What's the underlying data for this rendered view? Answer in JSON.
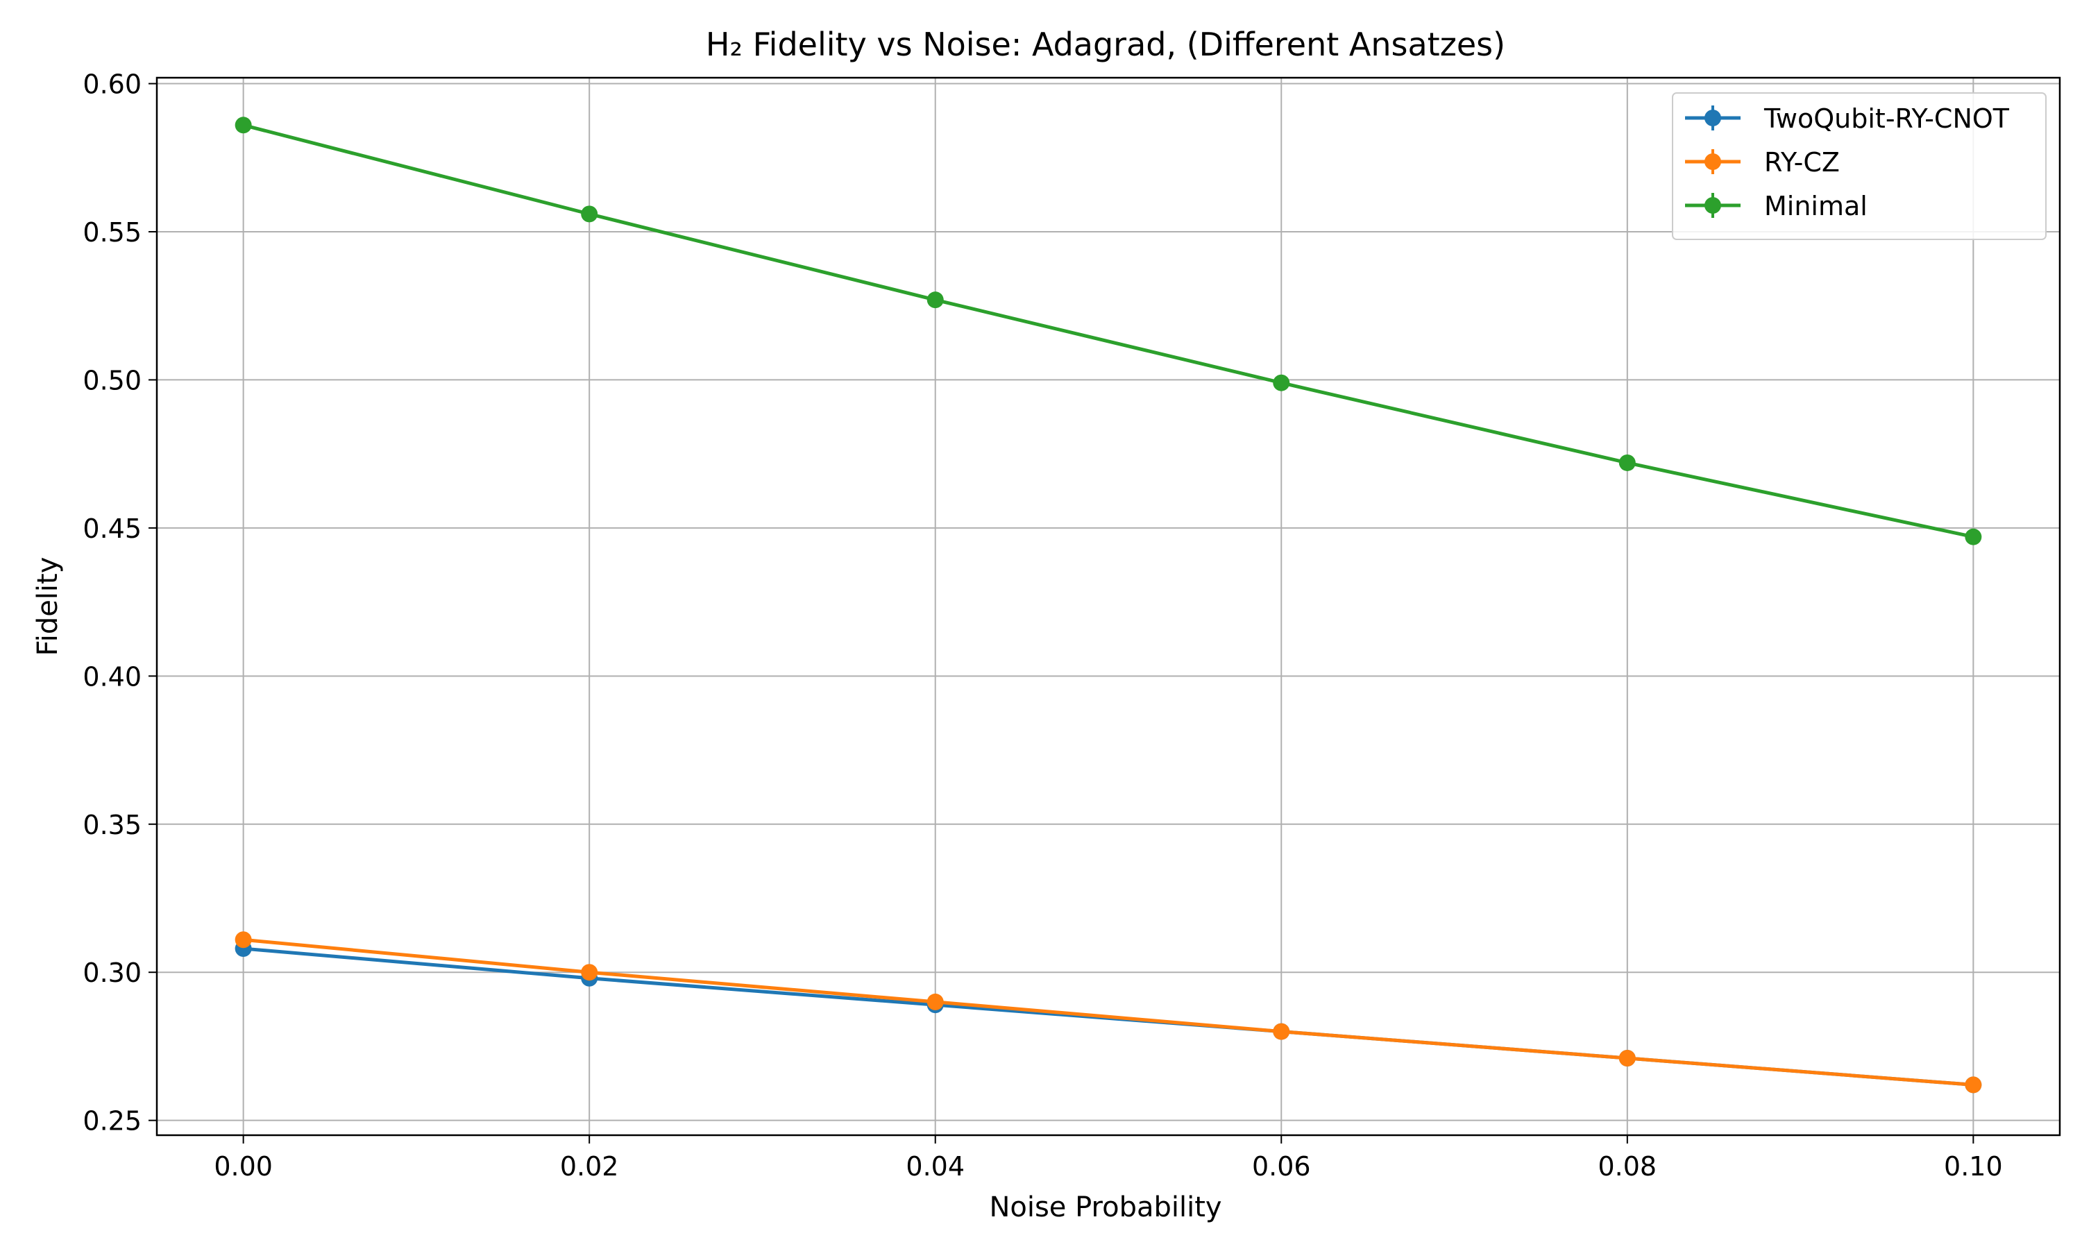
{
  "chart_data": {
    "type": "line",
    "title": "H₂ Fidelity vs Noise: Adagrad, (Different Ansatzes)",
    "xlabel": "Noise Probability",
    "ylabel": "Fidelity",
    "x": [
      0.0,
      0.02,
      0.04,
      0.06,
      0.08,
      0.1
    ],
    "xticks": [
      "0.00",
      "0.02",
      "0.04",
      "0.06",
      "0.08",
      "0.10"
    ],
    "yticks": [
      "0.25",
      "0.30",
      "0.35",
      "0.40",
      "0.45",
      "0.50",
      "0.55",
      "0.60"
    ],
    "xlim": [
      -0.005,
      0.105
    ],
    "ylim": [
      0.245,
      0.602
    ],
    "grid": true,
    "legend_position": "top-right",
    "series": [
      {
        "name": "TwoQubit-RY-CNOT",
        "color": "#1f77b4",
        "values": [
          0.308,
          0.298,
          0.289,
          0.28,
          0.271,
          0.262
        ]
      },
      {
        "name": "RY-CZ",
        "color": "#ff7f0e",
        "values": [
          0.311,
          0.3,
          0.29,
          0.28,
          0.271,
          0.262
        ]
      },
      {
        "name": "Minimal",
        "color": "#2ca02c",
        "values": [
          0.586,
          0.556,
          0.527,
          0.499,
          0.472,
          0.447
        ]
      }
    ]
  }
}
